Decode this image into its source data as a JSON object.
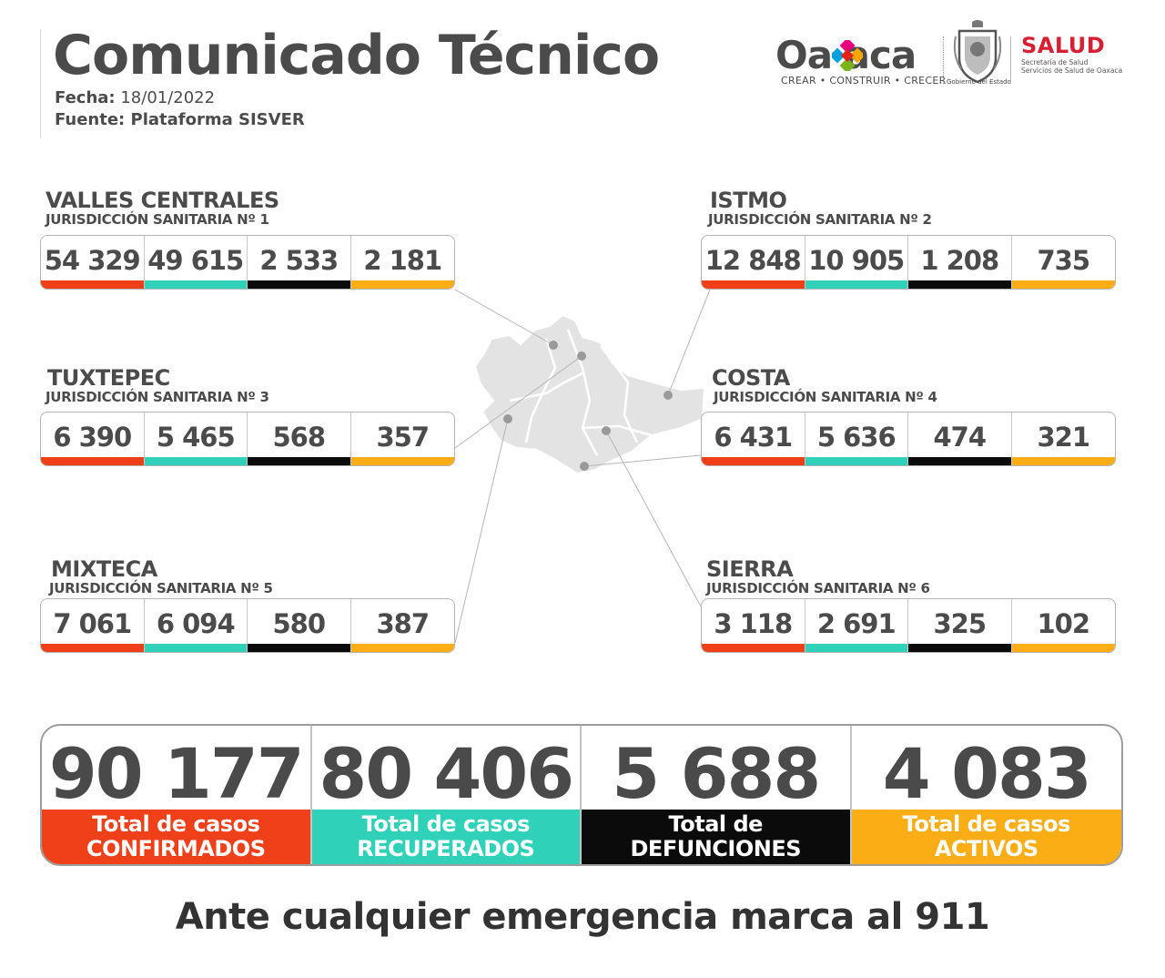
{
  "header": {
    "title": "Comunicado Técnico",
    "fecha_label": "Fecha:",
    "fecha_value": "18/01/2022",
    "fuente": "Fuente: Plataforma SISVER"
  },
  "logos": {
    "oaxaca_word": "Oa  aca",
    "oaxaca_tagline": "CREAR • CONSTRUIR • CRECER",
    "gobierno_caption": "Gobierno del Estado",
    "salud_word": "SALUD",
    "salud_sub1": "Secretaría de Salud",
    "salud_sub2": "Servicios de Salud de Oaxaca"
  },
  "colors": {
    "confirmados": "#f04019",
    "recuperados": "#2fd1b9",
    "defunciones": "#0b0b0b",
    "activos": "#fbad15"
  },
  "regions": [
    {
      "name": "VALLES CENTRALES",
      "sub": "JURISDICCIÓN SANITARIA Nº 1",
      "values": [
        "54 329",
        "49 615",
        "2 533",
        "2 181"
      ]
    },
    {
      "name": "ISTMO",
      "sub": "JURISDICCIÓN SANITARIA Nº 2",
      "values": [
        "12 848",
        "10 905",
        "1 208",
        "735"
      ]
    },
    {
      "name": "TUXTEPEC",
      "sub": "JURISDICCIÓN SANITARIA Nº 3",
      "values": [
        "6 390",
        "5 465",
        "568",
        "357"
      ]
    },
    {
      "name": "COSTA",
      "sub": "JURISDICCIÓN SANITARIA Nº 4",
      "values": [
        "6 431",
        "5 636",
        "474",
        "321"
      ]
    },
    {
      "name": "MIXTECA",
      "sub": "JURISDICCIÓN SANITARIA Nº 5",
      "values": [
        "7 061",
        "6 094",
        "580",
        "387"
      ]
    },
    {
      "name": "SIERRA",
      "sub": "JURISDICCIÓN SANITARIA Nº 6",
      "values": [
        "3 118",
        "2 691",
        "325",
        "102"
      ]
    }
  ],
  "totals": [
    {
      "value": "90 177",
      "line1": "Total de casos",
      "line2": "CONFIRMADOS"
    },
    {
      "value": "80 406",
      "line1": "Total de casos",
      "line2": "RECUPERADOS"
    },
    {
      "value": "5 688",
      "line1": "Total de",
      "line2": "DEFUNCIONES"
    },
    {
      "value": "4 083",
      "line1": "Total de casos",
      "line2": "ACTIVOS"
    }
  ],
  "footer": "Ante cualquier emergencia marca al 911"
}
